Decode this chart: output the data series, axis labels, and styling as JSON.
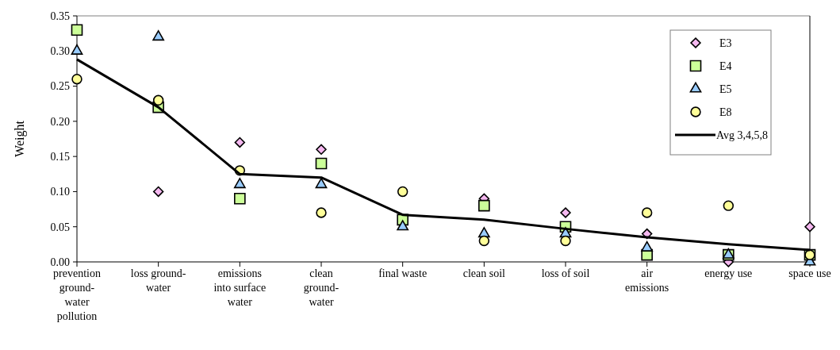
{
  "chart_data": {
    "type": "line",
    "ylabel": "Weight",
    "categories": [
      "prevention ground-water pollution",
      "loss ground-water",
      "emissions into surface water",
      "clean ground-water",
      "final waste",
      "clean soil",
      "loss of soil",
      "air emissions",
      "energy use",
      "space use"
    ],
    "ylim": [
      0,
      0.35
    ],
    "yticks": [
      {
        "value": 0,
        "label": "0.00"
      },
      {
        "value": 0.05,
        "label": "0.05"
      },
      {
        "value": 0.1,
        "label": "0.10"
      },
      {
        "value": 0.15,
        "label": "0.15"
      },
      {
        "value": 0.2,
        "label": "0.20"
      },
      {
        "value": 0.25,
        "label": "0.25"
      },
      {
        "value": 0.3,
        "label": "0.30"
      },
      {
        "value": 0.35,
        "label": "0.35"
      }
    ],
    "legend": "top right",
    "series": [
      {
        "name": "E3",
        "type": "scatter",
        "marker": "diamond",
        "color": "#f5b8f0",
        "values": [
          null,
          0.1,
          0.17,
          0.16,
          null,
          0.09,
          0.07,
          0.04,
          0.0,
          0.05
        ]
      },
      {
        "name": "E4",
        "type": "scatter",
        "marker": "square",
        "color": "#ccff99",
        "values": [
          0.33,
          0.22,
          0.09,
          0.14,
          0.06,
          0.08,
          0.05,
          0.01,
          0.01,
          0.01
        ]
      },
      {
        "name": "E5",
        "type": "scatter",
        "marker": "triangle",
        "color": "#99ccff",
        "values": [
          0.3,
          0.32,
          0.11,
          0.11,
          0.05,
          0.04,
          0.04,
          0.02,
          0.01,
          0.0
        ]
      },
      {
        "name": "E8",
        "type": "scatter",
        "marker": "circle",
        "color": "#ffff99",
        "values": [
          0.26,
          0.23,
          0.13,
          0.07,
          0.1,
          0.03,
          0.03,
          0.07,
          0.08,
          0.01
        ]
      },
      {
        "name": "Avg 3,4,5,8",
        "type": "line",
        "marker": "none",
        "line_style": "solid",
        "color": "#000000",
        "values": [
          0.288,
          0.22,
          0.125,
          0.12,
          0.067,
          0.06,
          0.047,
          0.035,
          0.025,
          0.017
        ]
      }
    ]
  }
}
